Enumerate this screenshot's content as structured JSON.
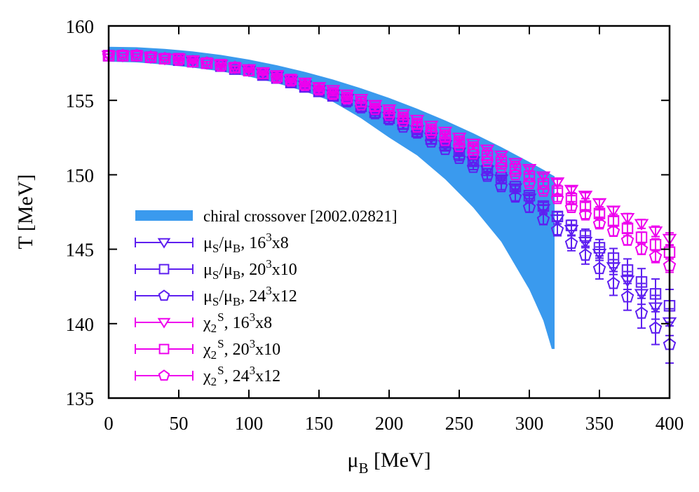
{
  "chart_data": {
    "type": "scatter",
    "xlabel": {
      "main": "μ",
      "sub": "B",
      "rest": " [MeV]"
    },
    "ylabel": "T [MeV]",
    "xlim": [
      0,
      400
    ],
    "ylim": [
      135,
      160
    ],
    "xticks": [
      "0",
      "50",
      "100",
      "150",
      "200",
      "250",
      "300",
      "350",
      "400"
    ],
    "yticks": [
      "135",
      "140",
      "145",
      "150",
      "155",
      "160"
    ],
    "grid": false,
    "legend_position": "bottom-left",
    "band": {
      "name": "chiral crossover [2002.02821]",
      "color": "#3a9aee",
      "x": [
        0,
        20,
        40,
        60,
        80,
        100,
        120,
        140,
        160,
        180,
        200,
        220,
        240,
        260,
        280,
        300,
        310,
        316,
        318
      ],
      "upper": [
        158.6,
        158.57,
        158.46,
        158.29,
        158.05,
        157.74,
        157.36,
        156.91,
        156.4,
        155.81,
        155.16,
        154.44,
        153.65,
        152.79,
        151.86,
        150.86,
        150.34,
        150.0,
        149.9
      ],
      "lower": [
        157.6,
        157.55,
        157.4,
        157.2,
        156.95,
        156.6,
        156.15,
        155.6,
        154.9,
        153.8,
        152.5,
        151.3,
        149.7,
        147.8,
        145.5,
        142.3,
        140.2,
        138.3,
        138.3
      ]
    },
    "x": [
      0,
      10,
      20,
      30,
      40,
      50,
      60,
      70,
      80,
      90,
      100,
      110,
      120,
      130,
      140,
      150,
      160,
      170,
      180,
      190,
      200,
      210,
      220,
      230,
      240,
      250,
      260,
      270,
      280,
      290,
      300,
      310,
      320,
      330,
      340,
      350,
      360,
      370,
      380,
      390,
      400
    ],
    "series": [
      {
        "name": "μS/μB, 16³x8",
        "label_parts": [
          [
            "μ",
            ""
          ],
          [
            "S",
            "sub"
          ],
          [
            "/μ",
            ""
          ],
          [
            "B",
            "sub"
          ],
          [
            ", 16",
            ""
          ],
          [
            "3",
            "sup"
          ],
          [
            "x8",
            ""
          ]
        ],
        "color": "#5e1ff0",
        "marker": "triangle-down",
        "y": [
          158.0,
          158.0,
          158.0,
          157.9,
          157.8,
          157.8,
          157.6,
          157.5,
          157.4,
          157.2,
          157.0,
          156.8,
          156.6,
          156.3,
          156.0,
          155.7,
          155.4,
          155.1,
          154.7,
          154.3,
          153.9,
          153.5,
          153.0,
          152.5,
          152.0,
          151.5,
          150.9,
          150.3,
          149.7,
          149.1,
          148.4,
          147.7,
          147.0,
          146.3,
          145.5,
          144.7,
          143.8,
          142.9,
          142.0,
          141.1,
          140.1
        ],
        "yerr": [
          0.1,
          0.1,
          0.1,
          0.1,
          0.1,
          0.1,
          0.1,
          0.1,
          0.1,
          0.1,
          0.1,
          0.1,
          0.1,
          0.1,
          0.1,
          0.1,
          0.1,
          0.1,
          0.1,
          0.1,
          0.1,
          0.1,
          0.1,
          0.1,
          0.1,
          0.1,
          0.1,
          0.1,
          0.1,
          0.15,
          0.2,
          0.25,
          0.3,
          0.35,
          0.4,
          0.45,
          0.5,
          0.6,
          0.7,
          0.8,
          0.9
        ]
      },
      {
        "name": "μS/μB, 20³x10",
        "label_parts": [
          [
            "μ",
            ""
          ],
          [
            "S",
            "sub"
          ],
          [
            "/μ",
            ""
          ],
          [
            "B",
            "sub"
          ],
          [
            ", 20",
            ""
          ],
          [
            "3",
            "sup"
          ],
          [
            "x10",
            ""
          ]
        ],
        "color": "#5e1ff0",
        "marker": "square",
        "y": [
          158.0,
          158.0,
          158.0,
          157.9,
          157.8,
          157.7,
          157.6,
          157.5,
          157.3,
          157.1,
          157.0,
          156.7,
          156.5,
          156.2,
          155.9,
          155.6,
          155.3,
          155.0,
          154.6,
          154.2,
          153.8,
          153.4,
          152.9,
          152.4,
          152.0,
          151.4,
          150.9,
          150.3,
          149.8,
          149.2,
          148.6,
          147.9,
          147.2,
          146.6,
          145.9,
          145.1,
          144.4,
          143.6,
          142.8,
          142.0,
          141.2
        ],
        "yerr": [
          0.1,
          0.1,
          0.1,
          0.1,
          0.1,
          0.1,
          0.1,
          0.1,
          0.1,
          0.1,
          0.1,
          0.1,
          0.1,
          0.1,
          0.1,
          0.1,
          0.1,
          0.1,
          0.1,
          0.1,
          0.1,
          0.1,
          0.1,
          0.1,
          0.1,
          0.1,
          0.1,
          0.1,
          0.1,
          0.15,
          0.2,
          0.25,
          0.3,
          0.35,
          0.45,
          0.55,
          0.65,
          0.75,
          0.9,
          1.0,
          1.1
        ]
      },
      {
        "name": "μS/μB, 24³x12",
        "label_parts": [
          [
            "μ",
            ""
          ],
          [
            "S",
            "sub"
          ],
          [
            "/μ",
            ""
          ],
          [
            "B",
            "sub"
          ],
          [
            ", 24",
            ""
          ],
          [
            "3",
            "sup"
          ],
          [
            "x12",
            ""
          ]
        ],
        "color": "#5e1ff0",
        "marker": "pentagon",
        "y": [
          158.0,
          158.0,
          158.0,
          157.9,
          157.8,
          157.7,
          157.6,
          157.5,
          157.3,
          157.2,
          157.0,
          156.7,
          156.5,
          156.2,
          155.9,
          155.6,
          155.3,
          154.9,
          154.5,
          154.1,
          153.7,
          153.2,
          152.8,
          152.2,
          151.7,
          151.1,
          150.5,
          149.9,
          149.2,
          148.5,
          147.8,
          147.0,
          146.3,
          145.4,
          144.6,
          143.7,
          142.7,
          141.8,
          140.7,
          139.7,
          138.6
        ],
        "yerr": [
          0.1,
          0.1,
          0.1,
          0.1,
          0.1,
          0.1,
          0.1,
          0.1,
          0.1,
          0.1,
          0.1,
          0.1,
          0.1,
          0.1,
          0.1,
          0.1,
          0.1,
          0.1,
          0.1,
          0.1,
          0.1,
          0.1,
          0.1,
          0.1,
          0.1,
          0.15,
          0.15,
          0.2,
          0.2,
          0.25,
          0.3,
          0.35,
          0.4,
          0.5,
          0.6,
          0.7,
          0.8,
          0.9,
          1.0,
          1.1,
          1.25
        ]
      },
      {
        "name": "χ2S, 16³x8",
        "label_parts": [
          [
            "χ",
            ""
          ],
          [
            "2",
            "sub"
          ],
          [
            "S",
            "supover"
          ],
          [
            ", 16",
            ""
          ],
          [
            "3",
            "sup"
          ],
          [
            "x8",
            ""
          ]
        ],
        "color": "#ee00ee",
        "marker": "triangle-down",
        "y": [
          158.0,
          158.0,
          158.0,
          157.9,
          157.8,
          157.8,
          157.7,
          157.5,
          157.4,
          157.2,
          157.1,
          156.9,
          156.7,
          156.4,
          156.2,
          155.9,
          155.7,
          155.4,
          155.1,
          154.7,
          154.4,
          154.1,
          153.7,
          153.3,
          152.9,
          152.5,
          152.1,
          151.7,
          151.3,
          150.8,
          150.4,
          149.9,
          149.5,
          149.0,
          148.6,
          148.1,
          147.6,
          147.1,
          146.7,
          146.2,
          145.7
        ],
        "yerr": [
          0.1,
          0.1,
          0.1,
          0.1,
          0.1,
          0.1,
          0.1,
          0.1,
          0.1,
          0.1,
          0.1,
          0.1,
          0.1,
          0.1,
          0.1,
          0.1,
          0.1,
          0.1,
          0.1,
          0.1,
          0.1,
          0.1,
          0.1,
          0.1,
          0.1,
          0.1,
          0.1,
          0.1,
          0.1,
          0.1,
          0.15,
          0.15,
          0.2,
          0.2,
          0.2,
          0.25,
          0.25,
          0.3,
          0.3,
          0.35,
          0.4
        ]
      },
      {
        "name": "χ2S, 20³x10",
        "label_parts": [
          [
            "χ",
            ""
          ],
          [
            "2",
            "sub"
          ],
          [
            "S",
            "supover"
          ],
          [
            ", 20",
            ""
          ],
          [
            "3",
            "sup"
          ],
          [
            "x10",
            ""
          ]
        ],
        "color": "#ee00ee",
        "marker": "square",
        "y": [
          158.0,
          158.0,
          158.0,
          157.9,
          157.8,
          157.8,
          157.6,
          157.5,
          157.4,
          157.2,
          157.0,
          156.8,
          156.6,
          156.4,
          156.1,
          155.8,
          155.5,
          155.2,
          154.9,
          154.6,
          154.2,
          153.8,
          153.4,
          153.0,
          152.6,
          152.2,
          151.8,
          151.3,
          150.9,
          150.4,
          149.9,
          149.4,
          148.9,
          148.4,
          147.9,
          147.4,
          146.9,
          146.4,
          145.8,
          145.3,
          144.8
        ],
        "yerr": [
          0.1,
          0.1,
          0.1,
          0.1,
          0.1,
          0.1,
          0.1,
          0.1,
          0.1,
          0.1,
          0.1,
          0.1,
          0.1,
          0.1,
          0.1,
          0.1,
          0.1,
          0.1,
          0.1,
          0.1,
          0.1,
          0.1,
          0.1,
          0.1,
          0.1,
          0.1,
          0.1,
          0.1,
          0.1,
          0.1,
          0.15,
          0.15,
          0.2,
          0.2,
          0.25,
          0.25,
          0.3,
          0.3,
          0.35,
          0.4,
          0.45
        ]
      },
      {
        "name": "χ2S, 24³x12",
        "label_parts": [
          [
            "χ",
            ""
          ],
          [
            "2",
            "sub"
          ],
          [
            "S",
            "supover"
          ],
          [
            ", 24",
            ""
          ],
          [
            "3",
            "sup"
          ],
          [
            "x12",
            ""
          ]
        ],
        "color": "#ee00ee",
        "marker": "pentagon",
        "y": [
          158.0,
          158.0,
          158.0,
          157.9,
          157.8,
          157.7,
          157.6,
          157.5,
          157.3,
          157.2,
          157.0,
          156.8,
          156.5,
          156.3,
          156.0,
          155.7,
          155.4,
          155.1,
          154.7,
          154.4,
          154.0,
          153.6,
          153.2,
          152.8,
          152.3,
          151.9,
          151.4,
          150.9,
          150.5,
          150.0,
          149.4,
          148.9,
          148.4,
          147.8,
          147.3,
          146.7,
          146.2,
          145.6,
          145.0,
          144.5,
          143.9
        ],
        "yerr": [
          0.1,
          0.1,
          0.1,
          0.1,
          0.1,
          0.1,
          0.1,
          0.1,
          0.1,
          0.1,
          0.1,
          0.1,
          0.1,
          0.1,
          0.1,
          0.1,
          0.1,
          0.1,
          0.1,
          0.1,
          0.1,
          0.1,
          0.1,
          0.1,
          0.1,
          0.1,
          0.1,
          0.1,
          0.1,
          0.1,
          0.15,
          0.15,
          0.2,
          0.2,
          0.25,
          0.25,
          0.3,
          0.3,
          0.35,
          0.4,
          0.45
        ]
      }
    ]
  }
}
